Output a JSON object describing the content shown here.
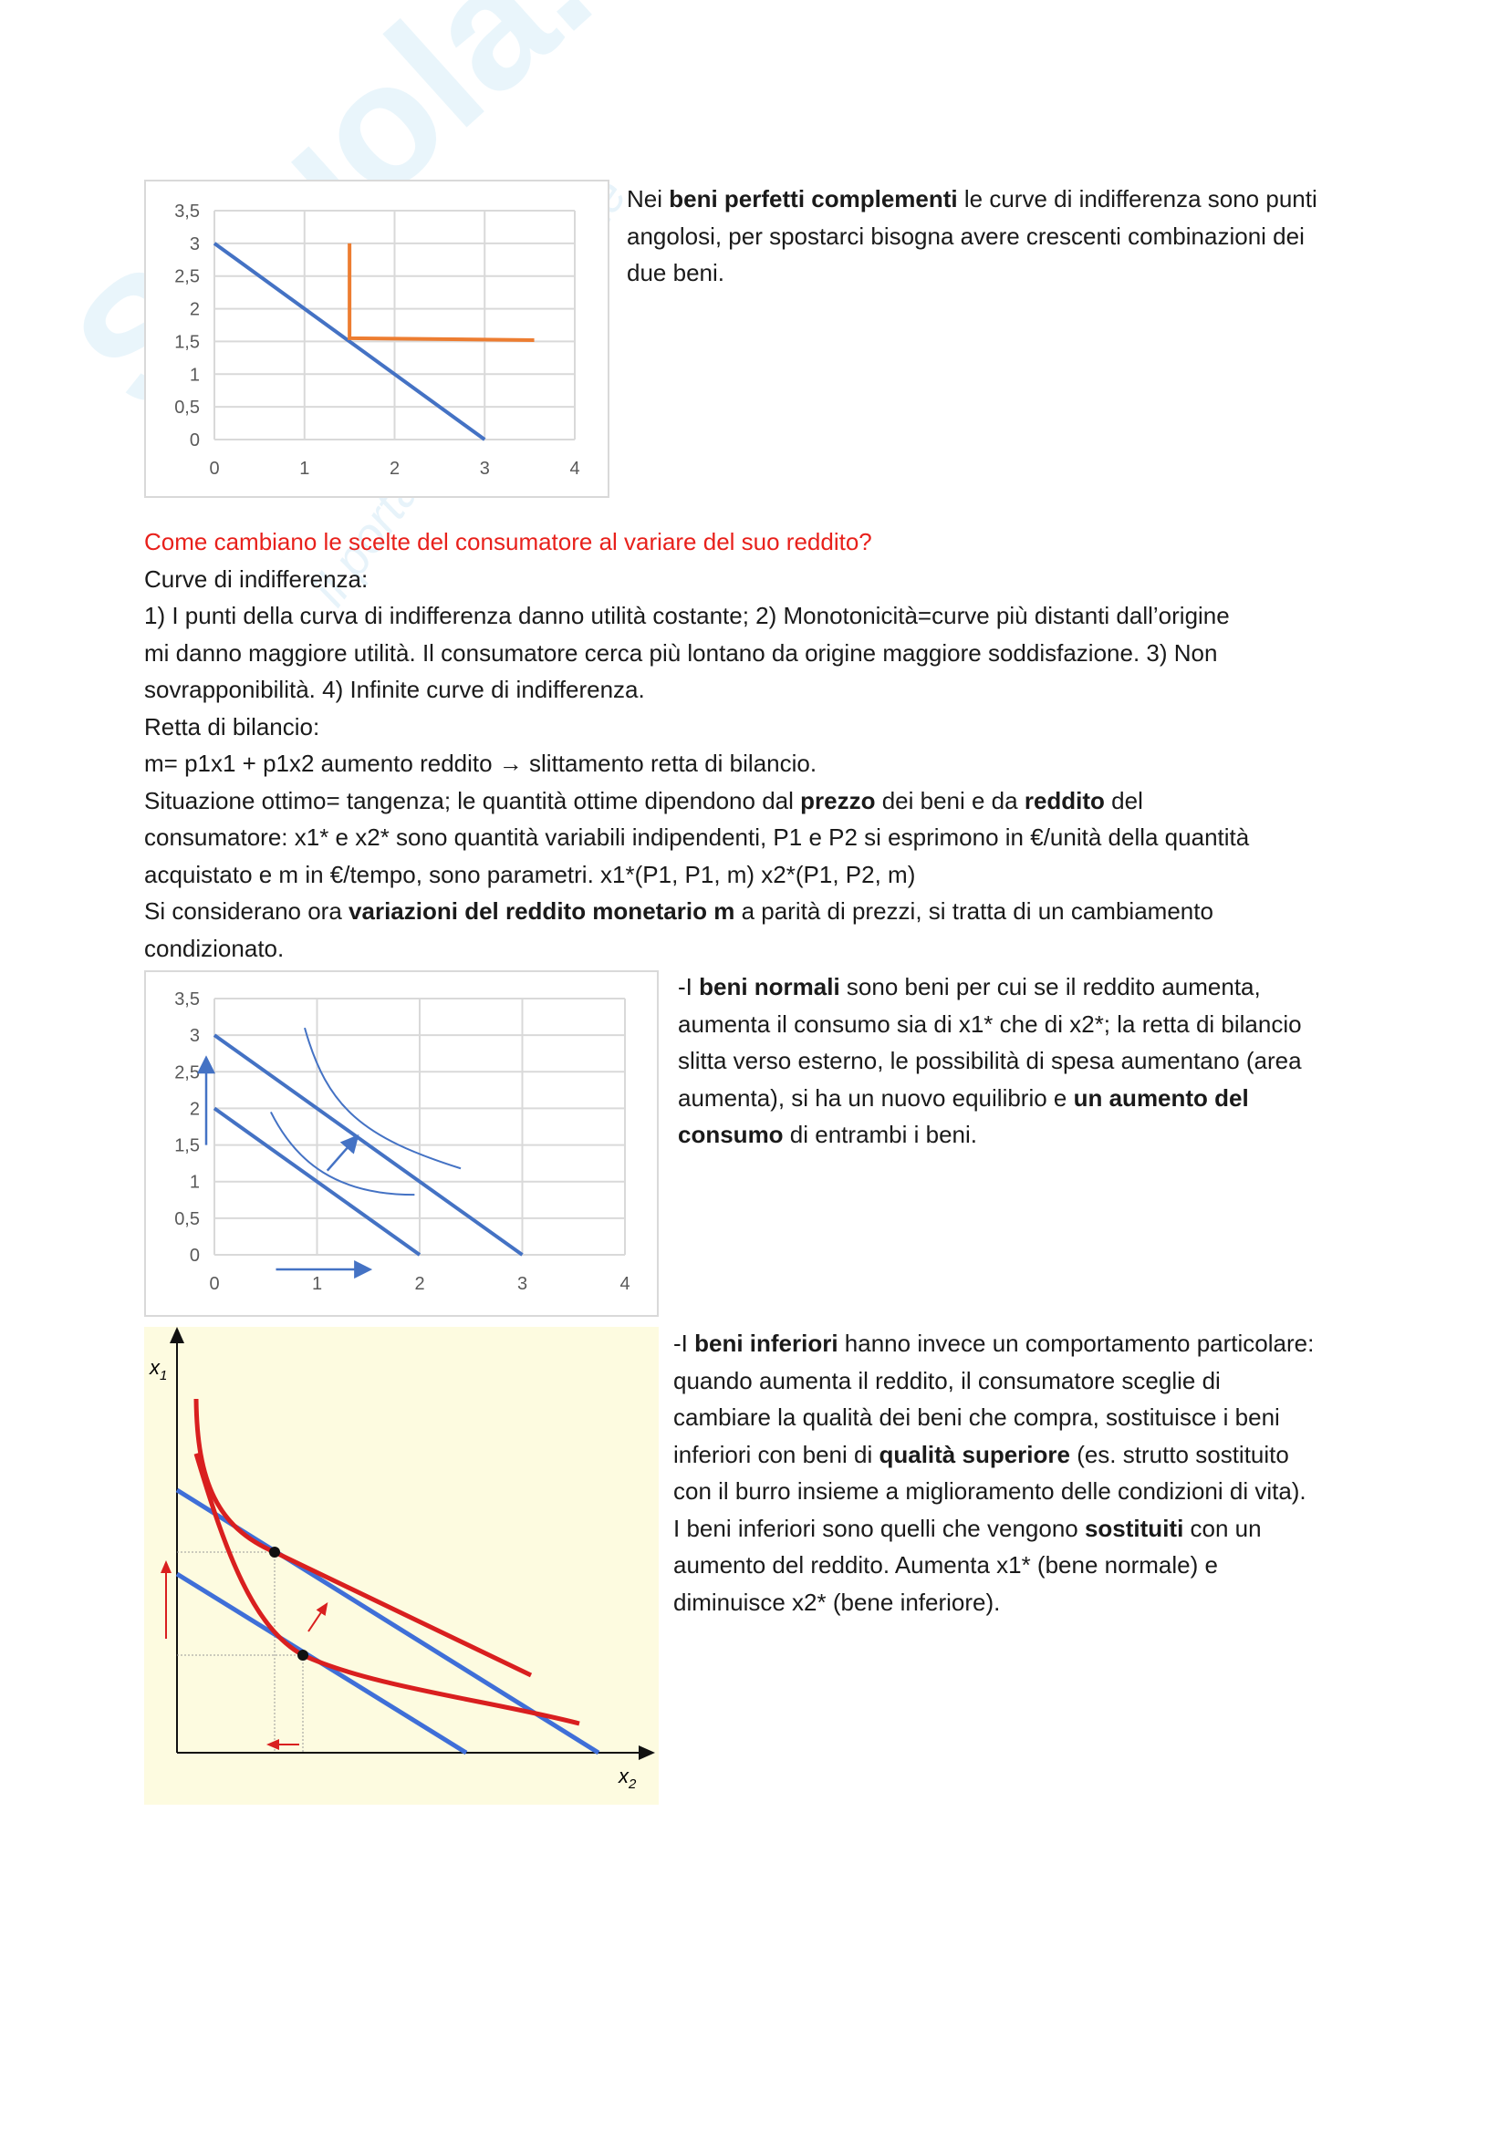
{
  "watermark": {
    "brand": "Skuola.net",
    "tagline": "il portale dello studente"
  },
  "colors": {
    "budget_line": "#4472c4",
    "complement_curve": "#ed7d31",
    "heading": "#e8201b",
    "inferior_curve": "#d91f1f",
    "inferior_budget": "#3f6fd8",
    "diagram_bg": "#fdfbe0"
  },
  "section1": {
    "lines": [
      [
        {
          "t": "Nei "
        },
        {
          "t": "beni perfetti complementi",
          "b": true
        },
        {
          "t": " le curve di indifferenza sono punti"
        }
      ],
      [
        {
          "t": "angolosi, per spostarci bisogna avere crescenti combinazioni dei"
        }
      ],
      [
        {
          "t": "due beni."
        }
      ]
    ]
  },
  "section2": {
    "heading": "Come cambiano le scelte del consumatore al variare del suo reddito?",
    "lines": [
      [
        {
          "t": "Curve di indifferenza:"
        }
      ],
      [
        {
          "t": "1) I punti della curva di indifferenza danno utilità costante; 2) Monotonicità=curve più distanti dall’origine"
        }
      ],
      [
        {
          "t": "mi danno maggiore utilità. Il consumatore cerca più lontano da origine maggiore soddisfazione. 3) Non"
        }
      ],
      [
        {
          "t": "sovrapponibilità. 4) Infinite curve di indifferenza."
        }
      ],
      [
        {
          "t": "Retta di bilancio:"
        }
      ],
      [
        {
          "t": "m= p1x1 + p1x2 aumento reddito → slittamento retta di bilancio."
        }
      ],
      [
        {
          "t": "Situazione ottimo= tangenza; le quantità ottime dipendono dal "
        },
        {
          "t": "prezzo",
          "b": true
        },
        {
          "t": " dei beni e da "
        },
        {
          "t": "reddito",
          "b": true
        },
        {
          "t": " del"
        }
      ],
      [
        {
          "t": "consumatore: x1* e x2* sono quantità variabili indipendenti, P1 e P2 si esprimono in €/unità della quantità"
        }
      ],
      [
        {
          "t": "acquistato e m in €/tempo, sono parametri. x1*(P1, P1, m) x2*(P1, P2, m)"
        }
      ],
      [
        {
          "t": "Si considerano ora "
        },
        {
          "t": "variazioni del reddito monetario m",
          "b": true
        },
        {
          "t": " a parità di prezzi, si tratta di un cambiamento"
        }
      ],
      [
        {
          "t": "condizionato."
        }
      ]
    ]
  },
  "section3": {
    "lines": [
      [
        {
          "t": "-I "
        },
        {
          "t": "beni normali",
          "b": true
        },
        {
          "t": " sono beni per cui se il reddito aumenta,"
        }
      ],
      [
        {
          "t": "aumenta il consumo sia di x1* che di x2*; la retta di bilancio"
        }
      ],
      [
        {
          "t": "slitta verso esterno, le possibilità di spesa aumentano (area"
        }
      ],
      [
        {
          "t": "aumenta), si ha un nuovo equilibrio e "
        },
        {
          "t": "un aumento del",
          "b": true
        }
      ],
      [
        {
          "t": "consumo",
          "b": true
        },
        {
          "t": " di entrambi i beni."
        }
      ]
    ]
  },
  "section4": {
    "lines": [
      [
        {
          "t": "-I "
        },
        {
          "t": "beni inferiori",
          "b": true
        },
        {
          "t": " hanno invece un comportamento particolare:"
        }
      ],
      [
        {
          "t": "quando aumenta il reddito, il consumatore sceglie di"
        }
      ],
      [
        {
          "t": "cambiare la qualità dei beni che compra, sostituisce i beni"
        }
      ],
      [
        {
          "t": "inferiori con beni di "
        },
        {
          "t": "qualità superiore",
          "b": true
        },
        {
          "t": " (es. strutto sostituito"
        }
      ],
      [
        {
          "t": "con il burro insieme a miglioramento delle condizioni di vita)."
        }
      ],
      [
        {
          "t": "I beni inferiori sono quelli che vengono "
        },
        {
          "t": "sostituiti",
          "b": true
        },
        {
          "t": " con un"
        }
      ],
      [
        {
          "t": "aumento del reddito. Aumenta x1* (bene normale) e"
        }
      ],
      [
        {
          "t": "diminuisce x2* (bene inferiore)."
        }
      ]
    ]
  },
  "chart_data": [
    {
      "type": "line",
      "xlim": [
        0,
        4
      ],
      "ylim": [
        0,
        3.5
      ],
      "grid": true,
      "x_ticks": [
        "0",
        "1",
        "2",
        "3",
        "4"
      ],
      "y_ticks": [
        "0",
        "0,5",
        "1",
        "1,5",
        "2",
        "2,5",
        "3",
        "3,5"
      ],
      "series": [
        {
          "color": "#4472c4",
          "points": [
            [
              0,
              3
            ],
            [
              3,
              0
            ]
          ]
        },
        {
          "color": "#ed7d31",
          "points": [
            [
              1.5,
              3
            ],
            [
              1.5,
              1.55
            ],
            [
              3.55,
              1.52
            ]
          ]
        }
      ]
    },
    {
      "type": "line",
      "xlim": [
        0,
        4
      ],
      "ylim": [
        0,
        3.5
      ],
      "grid": true,
      "x_ticks": [
        "0",
        "1",
        "2",
        "3",
        "4"
      ],
      "y_ticks": [
        "0",
        "0,5",
        "1",
        "1,5",
        "2",
        "2,5",
        "3",
        "3,5"
      ],
      "series": [
        {
          "color": "#4472c4",
          "points": [
            [
              0,
              3
            ],
            [
              3,
              0
            ]
          ]
        },
        {
          "color": "#4472c4",
          "points": [
            [
              0,
              2
            ],
            [
              2,
              0
            ]
          ]
        },
        {
          "color": "#4472c4",
          "curve": "indifference",
          "points": [
            [
              0.88,
              3.1
            ],
            [
              1.1,
              2.0
            ],
            [
              1.45,
              1.6
            ],
            [
              2.4,
              1.18
            ]
          ]
        },
        {
          "color": "#4472c4",
          "curve": "indifference",
          "points": [
            [
              0.55,
              1.95
            ],
            [
              0.8,
              1.25
            ],
            [
              1.2,
              0.82
            ],
            [
              1.95,
              0.82
            ]
          ]
        }
      ],
      "arrows": [
        {
          "from": [
            1.1,
            1.15
          ],
          "to": [
            1.35,
            1.55
          ]
        },
        {
          "from": [
            -0.08,
            1.5
          ],
          "to": [
            -0.08,
            2.6
          ]
        },
        {
          "from": [
            0.6,
            -0.2
          ],
          "to": [
            1.45,
            -0.2
          ]
        }
      ]
    }
  ],
  "diagram": {
    "y_axis_label": "x",
    "y_axis_sub": "1",
    "x_axis_label": "x",
    "x_axis_sub": "2"
  }
}
